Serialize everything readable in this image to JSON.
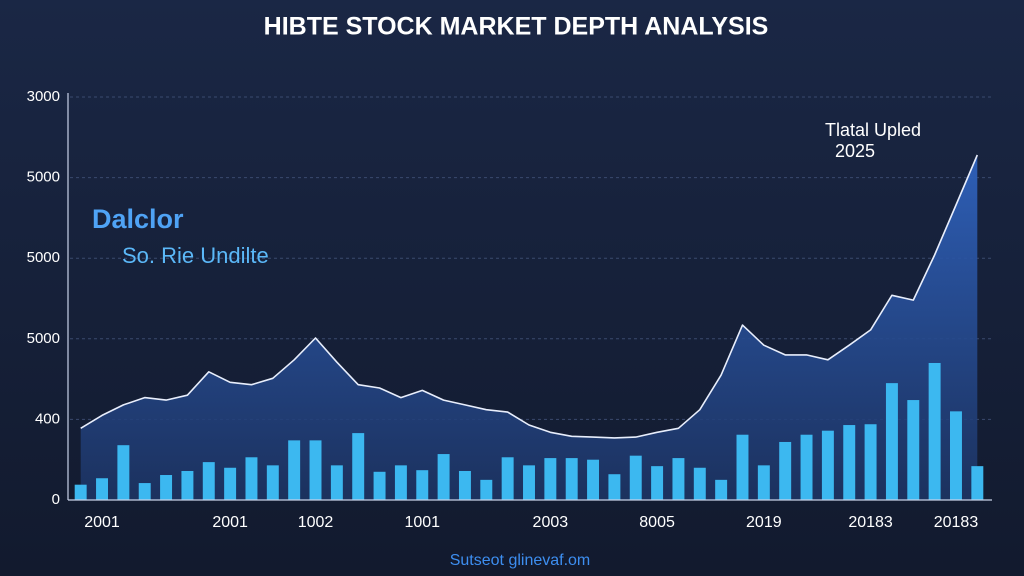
{
  "chart_data": {
    "type": "combo",
    "title": "HIBTE STOCK MARKET DEPTH ANALYSIS",
    "annotations": [
      "Dalclor",
      "So. Rie Undilte",
      "Tlatal Upled",
      "2025"
    ],
    "footer": "Sutseot glinevaf.om",
    "categories": [
      null,
      "2001",
      null,
      null,
      null,
      null,
      null,
      "2001",
      null,
      null,
      null,
      "1002",
      null,
      null,
      null,
      null,
      "1001",
      null,
      null,
      null,
      null,
      null,
      "2003",
      null,
      null,
      null,
      null,
      "8005",
      null,
      null,
      null,
      null,
      "2019",
      null,
      null,
      null,
      null,
      "20183",
      null,
      null,
      null,
      "20183",
      null
    ],
    "ylim": [
      0,
      5
    ],
    "yticks": [
      0,
      {
        "value": 1,
        "label": "400"
      },
      {
        "value": 2,
        "label": "5000"
      },
      {
        "value": 3,
        "label": "5000"
      },
      {
        "value": 4,
        "label": "5000"
      },
      {
        "value": 5,
        "label": "3000"
      }
    ],
    "grid": true,
    "series": [
      {
        "type": "bar",
        "color": "#3cb8f0",
        "values": [
          0.19,
          0.27,
          0.68,
          0.21,
          0.31,
          0.36,
          0.47,
          0.4,
          0.53,
          0.43,
          0.74,
          0.74,
          0.43,
          0.83,
          0.35,
          0.43,
          0.37,
          0.57,
          0.36,
          0.25,
          0.53,
          0.43,
          0.52,
          0.52,
          0.5,
          0.32,
          0.55,
          0.42,
          0.52,
          0.4,
          0.25,
          0.81,
          0.43,
          0.72,
          0.81,
          0.86,
          0.93,
          0.94,
          1.45,
          1.24,
          1.7,
          1.1,
          0.42
        ]
      },
      {
        "type": "area",
        "color": "#e8eefc",
        "fill": "#2b58a8",
        "values": [
          0.89,
          1.05,
          1.18,
          1.27,
          1.24,
          1.3,
          1.59,
          1.46,
          1.43,
          1.51,
          1.74,
          2.01,
          1.71,
          1.43,
          1.39,
          1.27,
          1.36,
          1.24,
          1.18,
          1.12,
          1.09,
          0.93,
          0.84,
          0.79,
          0.78,
          0.77,
          0.78,
          0.84,
          0.89,
          1.12,
          1.55,
          2.17,
          1.92,
          1.8,
          1.8,
          1.74,
          1.92,
          2.11,
          2.54,
          2.48,
          3.04,
          3.66,
          4.28
        ]
      }
    ]
  }
}
